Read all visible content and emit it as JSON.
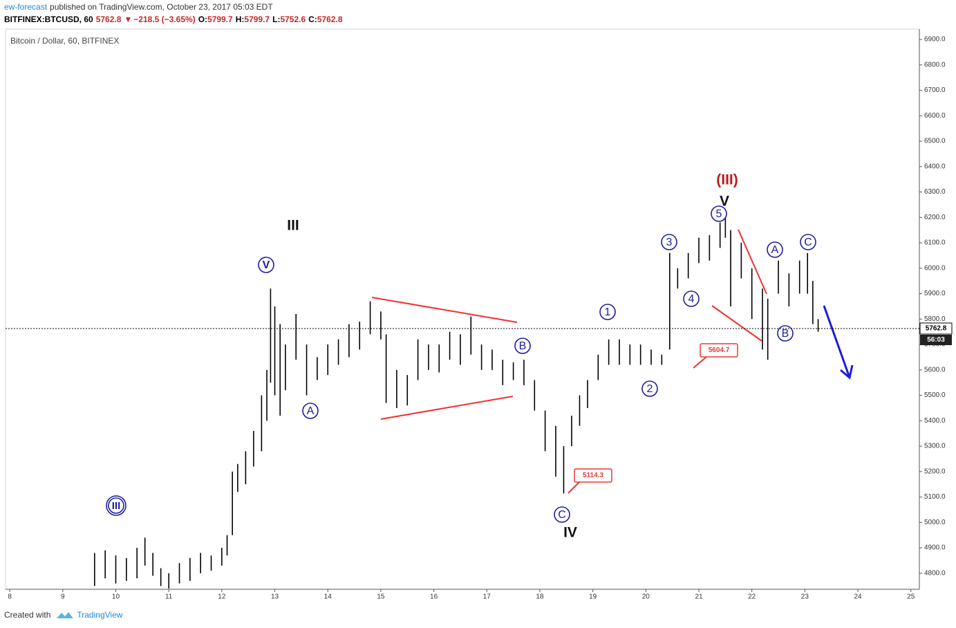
{
  "chart_data": {
    "type": "ohlc",
    "header": {
      "author": "ew-forecast",
      "published": "published on TradingView.com, October 23, 2017 05:03 EDT",
      "symbol": "BITFINEX:BTCUSD, 60",
      "arrow": "▼",
      "change": "−218.5 (−3.65%)",
      "o_label": "O:",
      "open": "5799.7",
      "h_label": "H:",
      "high": "5799.7",
      "l_label": "L:",
      "low": "5752.6",
      "c_label": "C:",
      "close": "5762.8"
    },
    "title": "Bitcoin / Dollar, 60, BITFINEX",
    "last_price": 5762.8,
    "countdown": "56:03",
    "color": "#000000",
    "x": [
      9.6,
      9.8,
      10.0,
      10.2,
      10.4,
      10.55,
      10.7,
      10.85,
      11.0,
      11.2,
      11.4,
      11.6,
      11.8,
      12.0,
      12.1,
      12.2,
      12.3,
      12.45,
      12.6,
      12.75,
      12.85,
      12.92,
      13.0,
      13.1,
      13.2,
      13.4,
      13.6,
      13.8,
      14.0,
      14.2,
      14.4,
      14.6,
      14.8,
      15.0,
      15.1,
      15.3,
      15.5,
      15.7,
      15.9,
      16.1,
      16.3,
      16.5,
      16.7,
      16.9,
      17.1,
      17.3,
      17.5,
      17.7,
      17.9,
      18.1,
      18.3,
      18.45,
      18.6,
      18.75,
      18.9,
      19.1,
      19.3,
      19.5,
      19.7,
      19.9,
      20.1,
      20.3,
      20.45,
      20.6,
      20.8,
      21.0,
      21.2,
      21.4,
      21.5,
      21.6,
      21.8,
      22.0,
      22.2,
      22.3,
      22.5,
      22.7,
      22.9,
      23.05,
      23.15,
      23.25
    ],
    "high": [
      4880,
      4890,
      4870,
      4860,
      4900,
      4940,
      4880,
      4820,
      4800,
      4840,
      4860,
      4880,
      4870,
      4900,
      4950,
      5200,
      5230,
      5280,
      5360,
      5500,
      5600,
      5920,
      5850,
      5780,
      5700,
      5820,
      5700,
      5650,
      5700,
      5720,
      5780,
      5790,
      5870,
      5830,
      5740,
      5600,
      5580,
      5720,
      5700,
      5700,
      5750,
      5740,
      5810,
      5700,
      5680,
      5640,
      5630,
      5640,
      5560,
      5440,
      5380,
      5300,
      5420,
      5500,
      5560,
      5660,
      5720,
      5720,
      5700,
      5700,
      5680,
      5660,
      6060,
      6000,
      6060,
      6120,
      6130,
      6180,
      6200,
      6150,
      6100,
      6000,
      5920,
      5880,
      6030,
      5980,
      6030,
      6060,
      5950,
      5800
    ],
    "low": [
      4750,
      4780,
      4760,
      4770,
      4780,
      4830,
      4790,
      4750,
      4740,
      4760,
      4770,
      4800,
      4810,
      4830,
      4870,
      4950,
      5120,
      5150,
      5220,
      5280,
      5400,
      5550,
      5500,
      5420,
      5520,
      5640,
      5500,
      5560,
      5580,
      5620,
      5650,
      5680,
      5740,
      5720,
      5470,
      5450,
      5460,
      5560,
      5600,
      5590,
      5640,
      5620,
      5660,
      5600,
      5600,
      5540,
      5560,
      5540,
      5440,
      5280,
      5180,
      5114,
      5300,
      5380,
      5450,
      5560,
      5620,
      5620,
      5620,
      5620,
      5620,
      5620,
      5680,
      5920,
      5960,
      6020,
      6030,
      6080,
      6120,
      5850,
      5960,
      5800,
      5680,
      5640,
      5900,
      5850,
      5900,
      5900,
      5780,
      5750
    ],
    "xlim": [
      7.92,
      25.16
    ],
    "xticks": [
      8,
      9,
      10,
      11,
      12,
      13,
      14,
      15,
      16,
      17,
      18,
      19,
      20,
      21,
      22,
      23,
      24,
      25
    ],
    "ylim": [
      4737,
      6941
    ],
    "yticks": [
      {
        "value": 4800,
        "label": "4800.0"
      },
      {
        "value": 4900,
        "label": "4900.0"
      },
      {
        "value": 5000,
        "label": "5000.0"
      },
      {
        "value": 5100,
        "label": "5100.0"
      },
      {
        "value": 5200,
        "label": "5200.0"
      },
      {
        "value": 5300,
        "label": "5300.0"
      },
      {
        "value": 5400,
        "label": "5400.0"
      },
      {
        "value": 5500,
        "label": "5500.0"
      },
      {
        "value": 5600,
        "label": "5600.0"
      },
      {
        "value": 5700,
        "label": "5700.0"
      },
      {
        "value": 5800,
        "label": "5800.0"
      },
      {
        "value": 5900,
        "label": "5900.0"
      },
      {
        "value": 6000,
        "label": "6000.0"
      },
      {
        "value": 6100,
        "label": "6100.0"
      },
      {
        "value": 6200,
        "label": "6200.0"
      },
      {
        "value": 6300,
        "label": "6300.0"
      },
      {
        "value": 6400,
        "label": "6400.0"
      },
      {
        "value": 6500,
        "label": "6500.0"
      },
      {
        "value": 6600,
        "label": "6600.0"
      },
      {
        "value": 6700,
        "label": "6700.0"
      },
      {
        "value": 6800,
        "label": "6800.0"
      },
      {
        "value": 6900,
        "label": "6900.0"
      }
    ],
    "price_labels": [
      5604.7,
      5114.3
    ],
    "annotations": [
      "III",
      "V",
      "III",
      "A",
      "B",
      "C",
      "IV",
      "1",
      "2",
      "3",
      "4",
      "5",
      "V",
      "(III)",
      "A",
      "B",
      "C"
    ],
    "footer": {
      "created": "Created with",
      "brand": "TradingView"
    }
  }
}
